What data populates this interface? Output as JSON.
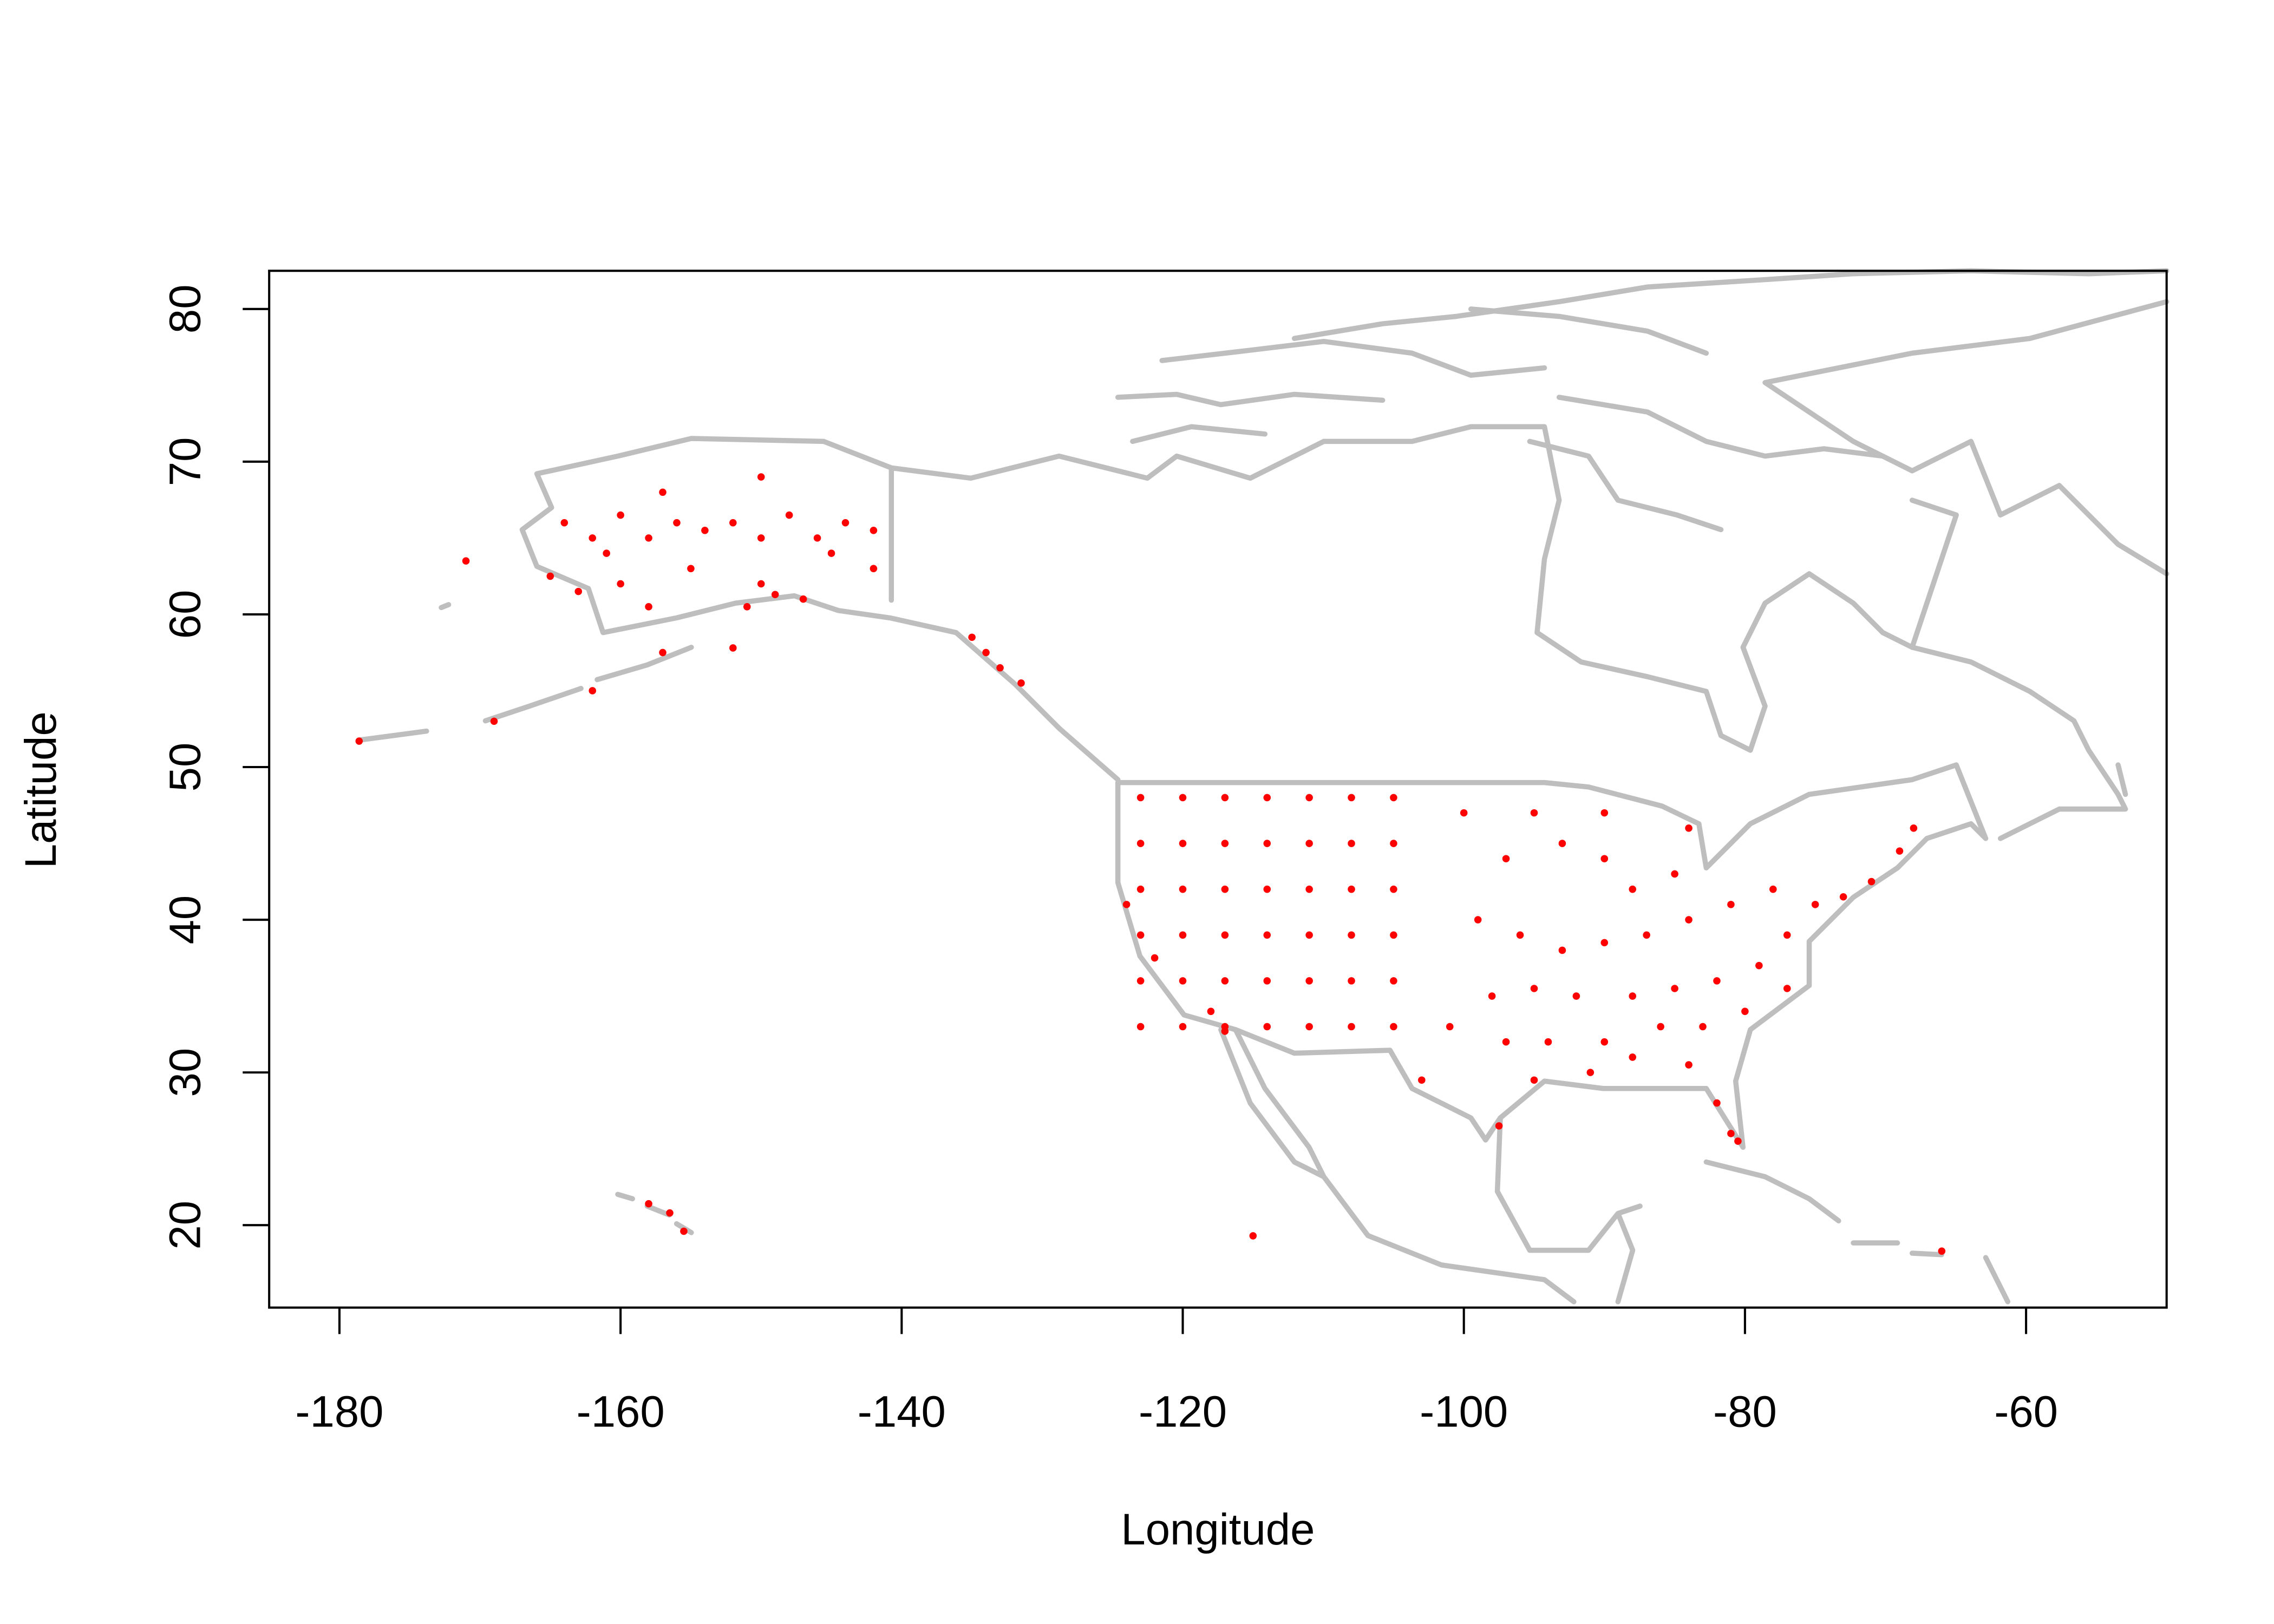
{
  "chart_data": {
    "type": "scatter",
    "x_label": "Longitude",
    "y_label": "Latitude",
    "color": "#ff0000",
    "xlim": [
      -185,
      -50
    ],
    "ylim": [
      14.6,
      82.5
    ],
    "xticks": [
      -180,
      -160,
      -140,
      -120,
      -100,
      -80,
      -60
    ],
    "yticks": [
      20,
      30,
      40,
      50,
      60,
      70,
      80
    ],
    "x": [
      -164,
      -162,
      -160,
      -158,
      -156,
      -154,
      -152,
      -150,
      -148,
      -146,
      -144,
      -142,
      -142,
      -145,
      -150,
      -155,
      -160,
      -163,
      -158,
      -151,
      -147,
      -161,
      -157,
      -150,
      -149,
      -165,
      -135,
      -134,
      -133,
      -131.5,
      -178.6,
      -171,
      -169,
      -162,
      -157,
      -152,
      -155.5,
      -156.5,
      -158,
      -123,
      -123,
      -123,
      -123,
      -123,
      -123,
      -120,
      -120,
      -120,
      -120,
      -120,
      -120,
      -117,
      -117,
      -117,
      -117,
      -117,
      -117,
      -114,
      -114,
      -114,
      -114,
      -114,
      -114,
      -111,
      -111,
      -111,
      -111,
      -111,
      -111,
      -108,
      -108,
      -108,
      -108,
      -108,
      -108,
      -105,
      -105,
      -105,
      -105,
      -105,
      -105,
      -124,
      -122,
      -118,
      -117,
      -100,
      -97,
      -95,
      -93,
      -90,
      -88,
      -85,
      -84,
      -90,
      -99,
      -96,
      -93,
      -90,
      -87,
      -84,
      -81,
      -78,
      -75,
      -73,
      -71,
      -69,
      -68,
      -77,
      -79,
      -82,
      -85,
      -88,
      -92,
      -95,
      -98,
      -101,
      -97,
      -94,
      -90,
      -86,
      -83,
      -80,
      -77,
      -97.5,
      -95,
      -91,
      -88,
      -84,
      -82,
      -81,
      -80.5,
      -103,
      -66,
      -115
    ],
    "values": [
      66,
      65,
      66.5,
      65,
      66,
      65.5,
      66,
      65,
      66.5,
      65,
      66,
      65.5,
      63,
      64,
      62,
      63,
      62,
      61.5,
      60.5,
      60.5,
      61,
      64,
      68,
      69,
      61.3,
      62.5,
      58.5,
      57.5,
      56.5,
      55.5,
      51.7,
      63.5,
      53,
      55,
      57.5,
      57.8,
      19.6,
      20.8,
      21.4,
      33,
      36,
      39,
      42,
      45,
      48,
      33,
      36,
      39,
      42,
      45,
      48,
      33,
      36,
      39,
      42,
      45,
      48,
      33,
      36,
      39,
      42,
      45,
      48,
      33,
      36,
      39,
      42,
      45,
      48,
      33,
      36,
      39,
      42,
      45,
      48,
      33,
      36,
      39,
      42,
      45,
      48,
      41,
      37.5,
      34,
      32.7,
      47,
      44,
      47,
      45,
      44,
      42,
      43,
      46,
      47,
      40,
      39,
      38,
      38.5,
      39,
      40,
      41,
      42,
      41,
      41.5,
      42.5,
      44.5,
      46,
      39,
      37,
      36,
      35.5,
      35,
      35,
      35.5,
      35,
      33,
      32,
      32,
      32,
      33,
      33,
      34,
      35.5,
      26.5,
      29.5,
      30,
      31,
      30.5,
      28,
      26,
      25.5,
      29.5,
      18.3,
      19.3
    ]
  }
}
